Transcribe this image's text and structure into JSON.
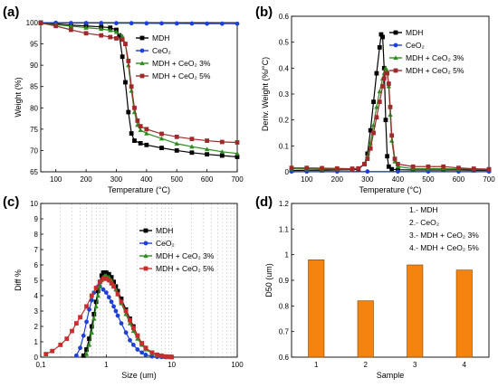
{
  "chart_data": [
    {
      "panel_label": "(a)",
      "type": "line",
      "xlabel": "Temperature (°C)",
      "ylabel": "Weight (%)",
      "xlim": [
        50,
        700
      ],
      "ylim": [
        65,
        100
      ],
      "xticks": [
        100,
        200,
        300,
        400,
        500,
        600,
        700
      ],
      "yticks": [
        65,
        70,
        75,
        80,
        85,
        90,
        95,
        100
      ],
      "legend_position": "top-right",
      "series": [
        {
          "name": "MDH",
          "color": "#000000",
          "marker": "square",
          "x": [
            50,
            100,
            150,
            200,
            250,
            280,
            300,
            310,
            320,
            330,
            340,
            350,
            360,
            380,
            400,
            450,
            500,
            550,
            600,
            650,
            700
          ],
          "y": [
            100,
            99.7,
            99.4,
            99.2,
            99.0,
            98.8,
            98.3,
            97.0,
            92.0,
            86.0,
            79.0,
            74.0,
            72.3,
            71.7,
            71.3,
            70.6,
            70.0,
            69.5,
            69.1,
            68.8,
            68.5
          ]
        },
        {
          "name": "CeO2",
          "display_name": "CeO₂",
          "color": "#1f3fd6",
          "marker": "circle",
          "x": [
            50,
            100,
            150,
            200,
            250,
            300,
            350,
            400,
            450,
            500,
            550,
            600,
            650,
            700
          ],
          "y": [
            100,
            99.95,
            99.9,
            99.9,
            99.88,
            99.86,
            99.85,
            99.83,
            99.82,
            99.8,
            99.78,
            99.76,
            99.75,
            99.74
          ]
        },
        {
          "name": "MDH + CeO2 3%",
          "display_name": "MDH + CeO₂ 3%",
          "color": "#2e8b1f",
          "marker": "triangle",
          "x": [
            50,
            100,
            150,
            200,
            250,
            280,
            300,
            320,
            330,
            340,
            350,
            360,
            370,
            380,
            400,
            450,
            500,
            550,
            600,
            650,
            700
          ],
          "y": [
            99.8,
            99.5,
            99.2,
            98.8,
            98.5,
            98.2,
            97.8,
            96.8,
            95.0,
            90.0,
            84.0,
            79.0,
            76.0,
            74.8,
            74.0,
            72.8,
            71.6,
            70.9,
            70.3,
            69.7,
            69.3
          ]
        },
        {
          "name": "MDH + CeO2 5%",
          "display_name": "MDH + CeO₂ 5%",
          "color": "#9e2a2b",
          "marker": "square",
          "x": [
            50,
            100,
            150,
            200,
            250,
            280,
            300,
            320,
            330,
            340,
            350,
            360,
            370,
            380,
            400,
            450,
            500,
            550,
            600,
            650,
            700
          ],
          "y": [
            99.9,
            99.2,
            98.3,
            97.5,
            97.0,
            96.6,
            96.3,
            96.0,
            95.0,
            91.0,
            85.0,
            80.0,
            77.0,
            75.7,
            75.0,
            73.9,
            73.2,
            72.7,
            72.3,
            72.0,
            71.9
          ]
        }
      ]
    },
    {
      "panel_label": "(b)",
      "type": "line",
      "xlabel": "Temperature (°C)",
      "ylabel": "Deriv. Weight (%/°C)",
      "xlim": [
        50,
        700
      ],
      "ylim": [
        0.0,
        0.6
      ],
      "xticks": [
        100,
        200,
        300,
        400,
        500,
        600,
        700
      ],
      "yticks": [
        0.0,
        0.1,
        0.2,
        0.3,
        0.4,
        0.5,
        0.6
      ],
      "legend_position": "top-right",
      "series": [
        {
          "name": "MDH",
          "color": "#000000",
          "marker": "square",
          "x": [
            50,
            100,
            150,
            200,
            250,
            270,
            290,
            300,
            310,
            320,
            330,
            340,
            345,
            350,
            355,
            360,
            365,
            370,
            380,
            400,
            450,
            500,
            550,
            600,
            650,
            700
          ],
          "y": [
            0.005,
            0.006,
            0.006,
            0.007,
            0.008,
            0.01,
            0.03,
            0.07,
            0.16,
            0.27,
            0.38,
            0.48,
            0.53,
            0.52,
            0.4,
            0.2,
            0.06,
            0.02,
            0.01,
            0.008,
            0.007,
            0.007,
            0.007,
            0.007,
            0.006,
            0.006
          ]
        },
        {
          "name": "CeO2",
          "display_name": "CeO₂",
          "color": "#1f3fd6",
          "marker": "circle",
          "x": [
            50,
            100,
            200,
            300,
            400,
            500,
            600,
            700
          ],
          "y": [
            0.001,
            0.001,
            0.001,
            0.001,
            0.001,
            0.001,
            0.001,
            0.001
          ]
        },
        {
          "name": "MDH + CeO2 3%",
          "display_name": "MDH + CeO₂ 3%",
          "color": "#2e8b1f",
          "marker": "triangle",
          "x": [
            50,
            100,
            150,
            200,
            250,
            270,
            290,
            300,
            310,
            320,
            330,
            340,
            350,
            355,
            360,
            365,
            370,
            375,
            380,
            390,
            400,
            450,
            500,
            550,
            600,
            650,
            700
          ],
          "y": [
            0.012,
            0.012,
            0.011,
            0.01,
            0.01,
            0.012,
            0.03,
            0.06,
            0.11,
            0.18,
            0.25,
            0.31,
            0.36,
            0.38,
            0.4,
            0.39,
            0.33,
            0.22,
            0.12,
            0.04,
            0.02,
            0.012,
            0.012,
            0.012,
            0.011,
            0.011,
            0.01
          ]
        },
        {
          "name": "MDH + CeO2 5%",
          "display_name": "MDH + CeO₂ 5%",
          "color": "#9e2a2b",
          "marker": "square",
          "x": [
            50,
            100,
            150,
            200,
            250,
            270,
            290,
            300,
            310,
            320,
            330,
            340,
            350,
            355,
            360,
            365,
            370,
            375,
            380,
            390,
            400,
            450,
            500,
            550,
            600,
            650,
            700
          ],
          "y": [
            0.015,
            0.015,
            0.014,
            0.013,
            0.012,
            0.013,
            0.03,
            0.05,
            0.09,
            0.15,
            0.21,
            0.27,
            0.33,
            0.36,
            0.38,
            0.38,
            0.34,
            0.25,
            0.14,
            0.05,
            0.03,
            0.02,
            0.02,
            0.02,
            0.015,
            0.012,
            0.01
          ]
        }
      ]
    },
    {
      "panel_label": "(c)",
      "type": "line",
      "xlabel": "Size (um)",
      "ylabel": "Diff %",
      "xscale": "log",
      "xlim": [
        0.1,
        100
      ],
      "ylim": [
        0,
        10
      ],
      "xticks": [
        0.1,
        1,
        10,
        100
      ],
      "xtick_labels": [
        "0,1",
        "1",
        "10",
        "100"
      ],
      "yticks": [
        0,
        1,
        2,
        3,
        4,
        5,
        6,
        7,
        8,
        9,
        10
      ],
      "legend_position": "top-right",
      "series": [
        {
          "name": "MDH",
          "color": "#000000",
          "marker": "square",
          "x": [
            0.45,
            0.5,
            0.55,
            0.6,
            0.65,
            0.7,
            0.75,
            0.8,
            0.85,
            0.9,
            0.95,
            1.0,
            1.1,
            1.2,
            1.3,
            1.4,
            1.5,
            1.7,
            2.0,
            2.3,
            2.6,
            3.0,
            3.5,
            4.0,
            5.0,
            6.0,
            7.0,
            8.0,
            9.0,
            10
          ],
          "y": [
            0.1,
            0.5,
            1.2,
            2.0,
            2.8,
            3.6,
            4.3,
            4.9,
            5.3,
            5.5,
            5.5,
            5.5,
            5.4,
            5.2,
            4.9,
            4.6,
            4.3,
            3.8,
            3.1,
            2.5,
            2.0,
            1.4,
            0.9,
            0.6,
            0.3,
            0.15,
            0.08,
            0.04,
            0.02,
            0.01
          ]
        },
        {
          "name": "CeO2",
          "display_name": "CeO₂",
          "color": "#1f3fd6",
          "marker": "circle",
          "x": [
            0.35,
            0.4,
            0.45,
            0.5,
            0.55,
            0.6,
            0.65,
            0.7,
            0.75,
            0.8,
            0.9,
            1.0,
            1.1,
            1.2,
            1.3,
            1.4,
            1.5,
            1.7,
            2.0,
            2.3,
            2.6,
            3.0,
            3.5,
            4.0,
            5.0,
            6.0,
            7.0,
            8.0
          ],
          "y": [
            0.1,
            0.6,
            1.4,
            2.3,
            3.1,
            3.7,
            4.2,
            4.5,
            4.6,
            4.6,
            4.4,
            4.2,
            3.9,
            3.6,
            3.3,
            3.0,
            2.7,
            2.2,
            1.6,
            1.1,
            0.8,
            0.5,
            0.3,
            0.15,
            0.05,
            0.02,
            0.01,
            0.0
          ]
        },
        {
          "name": "MDH + CeO2 3%",
          "display_name": "MDH + CeO₂ 3%",
          "color": "#2e8b1f",
          "marker": "triangle",
          "x": [
            0.5,
            0.55,
            0.6,
            0.65,
            0.7,
            0.75,
            0.8,
            0.85,
            0.9,
            0.95,
            1.0,
            1.1,
            1.2,
            1.3,
            1.4,
            1.5,
            1.7,
            2.0,
            2.3,
            2.6,
            3.0,
            3.5,
            4.0,
            5.0,
            6.0,
            7.0,
            8.0,
            9.0
          ],
          "y": [
            0.2,
            0.8,
            1.6,
            2.5,
            3.3,
            4.0,
            4.6,
            5.0,
            5.2,
            5.3,
            5.3,
            5.2,
            5.0,
            4.7,
            4.4,
            4.1,
            3.5,
            2.8,
            2.2,
            1.7,
            1.2,
            0.8,
            0.5,
            0.25,
            0.12,
            0.06,
            0.03,
            0.01
          ]
        },
        {
          "name": "MDH + CeO2 5%",
          "display_name": "MDH + CeO₂ 5%",
          "color": "#c62f2f",
          "marker": "square",
          "x": [
            0.12,
            0.15,
            0.2,
            0.25,
            0.3,
            0.35,
            0.4,
            0.5,
            0.6,
            0.7,
            0.8,
            0.9,
            1.0,
            1.1,
            1.2,
            1.3,
            1.5,
            1.7,
            2.0,
            2.3,
            2.6,
            3.0,
            3.5,
            4.0,
            5.0,
            6.0,
            7.0,
            8.0,
            9.0,
            10
          ],
          "y": [
            0.2,
            0.4,
            0.8,
            1.2,
            1.7,
            2.2,
            2.6,
            3.3,
            4.0,
            4.5,
            4.9,
            5.1,
            5.1,
            5.0,
            4.8,
            4.6,
            4.1,
            3.6,
            3.0,
            2.4,
            1.9,
            1.4,
            0.9,
            0.6,
            0.3,
            0.15,
            0.08,
            0.04,
            0.02,
            0.01
          ]
        }
      ]
    },
    {
      "panel_label": "(d)",
      "type": "bar",
      "xlabel": "Sample",
      "ylabel": "D50 (um)",
      "categories": [
        "1",
        "2",
        "3",
        "4"
      ],
      "values": [
        0.98,
        0.82,
        0.96,
        0.94
      ],
      "ylim": [
        0.6,
        1.2
      ],
      "yticks": [
        0.6,
        0.7,
        0.8,
        0.9,
        1.0,
        1.1,
        1.2
      ],
      "bar_color": "#f5830f",
      "legend_position": "top-right",
      "legend_items": [
        "1.- MDH",
        "2.- CeO₂",
        "3.- MDH + CeO₂ 3%",
        "4.- MDH + CeO₂ 5%"
      ]
    }
  ]
}
